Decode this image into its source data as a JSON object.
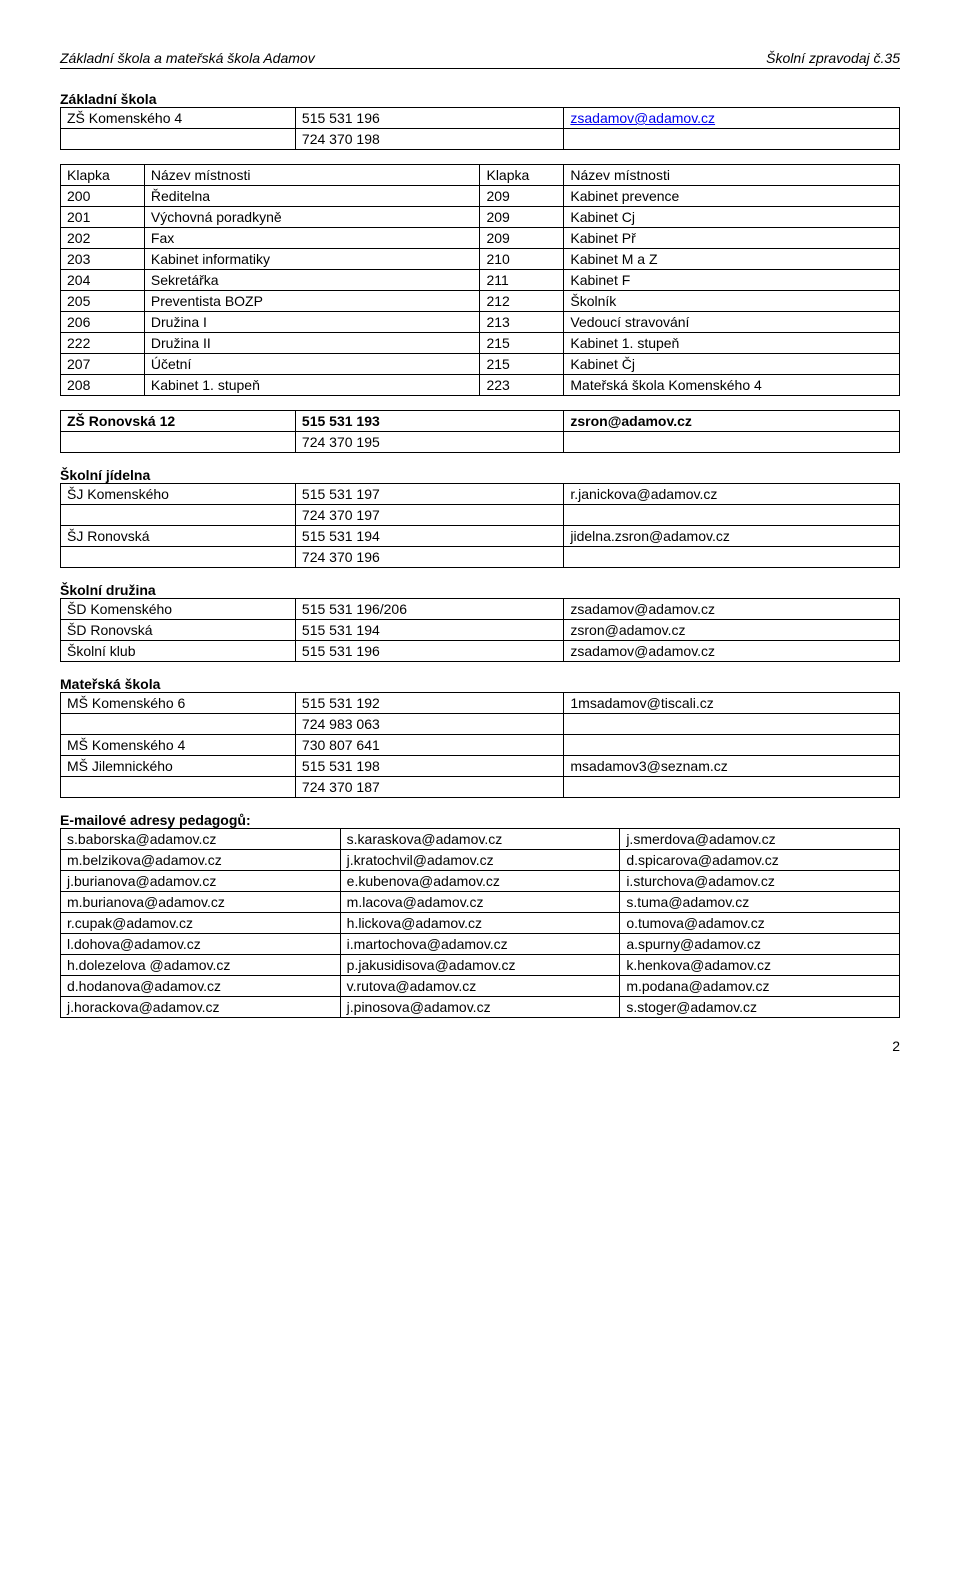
{
  "header": {
    "left": "Základní škola a mateřská škola Adamov",
    "right": "Školní zpravodaj č.35"
  },
  "zakladni_skola": {
    "title": "Základní škola",
    "rows": [
      [
        "ZŠ Komenského 4",
        "515 531 196",
        "zsadamov@adamov.cz",
        true
      ],
      [
        "",
        "724 370 198",
        "",
        false
      ]
    ]
  },
  "klapka": {
    "headers": [
      "Klapka",
      "Název místnosti",
      "Klapka",
      "Název místnosti"
    ],
    "rows": [
      [
        "200",
        "Ředitelna",
        "209",
        "Kabinet prevence"
      ],
      [
        "201",
        "Výchovná poradkyně",
        "209",
        "Kabinet Cj"
      ],
      [
        "202",
        "Fax",
        "209",
        "Kabinet Př"
      ],
      [
        "203",
        "Kabinet informatiky",
        "210",
        "Kabinet M a Z"
      ],
      [
        "204",
        "Sekretářka",
        "211",
        "Kabinet F"
      ],
      [
        "205",
        "Preventista BOZP",
        "212",
        "Školník"
      ],
      [
        "206",
        "Družina I",
        "213",
        "Vedoucí stravování"
      ],
      [
        "222",
        "Družina II",
        "215",
        "Kabinet 1. stupeň"
      ],
      [
        "207",
        "Účetní",
        "215",
        "Kabinet Čj"
      ],
      [
        "208",
        "Kabinet 1. stupeň",
        "223",
        "Mateřská škola Komenského 4"
      ]
    ]
  },
  "ronovska": {
    "rows": [
      [
        "ZŠ Ronovská 12",
        "515 531 193",
        "zsron@adamov.cz"
      ],
      [
        "",
        "724 370 195",
        ""
      ]
    ]
  },
  "jidelna": {
    "title": "Školní jídelna",
    "rows": [
      [
        "ŠJ Komenského",
        "515 531 197",
        "r.janickova@adamov.cz"
      ],
      [
        "",
        "724 370 197",
        ""
      ],
      [
        "ŠJ Ronovská",
        "515 531 194",
        "jidelna.zsron@adamov.cz"
      ],
      [
        "",
        "724 370 196",
        ""
      ]
    ]
  },
  "druzina": {
    "title": "Školní družina",
    "rows": [
      [
        "ŠD Komenského",
        "515 531 196/206",
        "zsadamov@adamov.cz"
      ],
      [
        "ŠD Ronovská",
        "515 531 194",
        "zsron@adamov.cz"
      ],
      [
        "Školní klub",
        "515 531 196",
        "zsadamov@adamov.cz"
      ]
    ]
  },
  "materska": {
    "title": "Mateřská škola",
    "rows": [
      [
        "MŠ Komenského 6",
        "515 531 192",
        "1msadamov@tiscali.cz"
      ],
      [
        "",
        "724 983 063",
        ""
      ],
      [
        "MŠ Komenského 4",
        "730 807 641",
        ""
      ],
      [
        "MŠ Jilemnického",
        "515 531 198",
        "msadamov3@seznam.cz"
      ],
      [
        "",
        "724 370 187",
        ""
      ]
    ]
  },
  "emails": {
    "title": "E-mailové adresy pedagogů:",
    "rows": [
      [
        "s.baborska@adamov.cz",
        "s.karaskova@adamov.cz",
        "j.smerdova@adamov.cz"
      ],
      [
        "m.belzikova@adamov.cz",
        "j.kratochvil@adamov.cz",
        "d.spicarova@adamov.cz"
      ],
      [
        "j.burianova@adamov.cz",
        "e.kubenova@adamov.cz",
        "i.sturchova@adamov.cz"
      ],
      [
        "m.burianova@adamov.cz",
        "m.lacova@adamov.cz",
        "s.tuma@adamov.cz"
      ],
      [
        "r.cupak@adamov.cz",
        "h.lickova@adamov.cz",
        "o.tumova@adamov.cz"
      ],
      [
        "l.dohova@adamov.cz",
        "i.martochova@adamov.cz",
        "a.spurny@adamov.cz"
      ],
      [
        "h.dolezelova @adamov.cz",
        "p.jakusidisova@adamov.cz",
        "k.henkova@adamov.cz"
      ],
      [
        "d.hodanova@adamov.cz",
        "v.rutova@adamov.cz",
        "m.podana@adamov.cz"
      ],
      [
        "j.horackova@adamov.cz",
        "j.pinosova@adamov.cz",
        "s.stoger@adamov.cz"
      ]
    ]
  },
  "page_num": "2"
}
